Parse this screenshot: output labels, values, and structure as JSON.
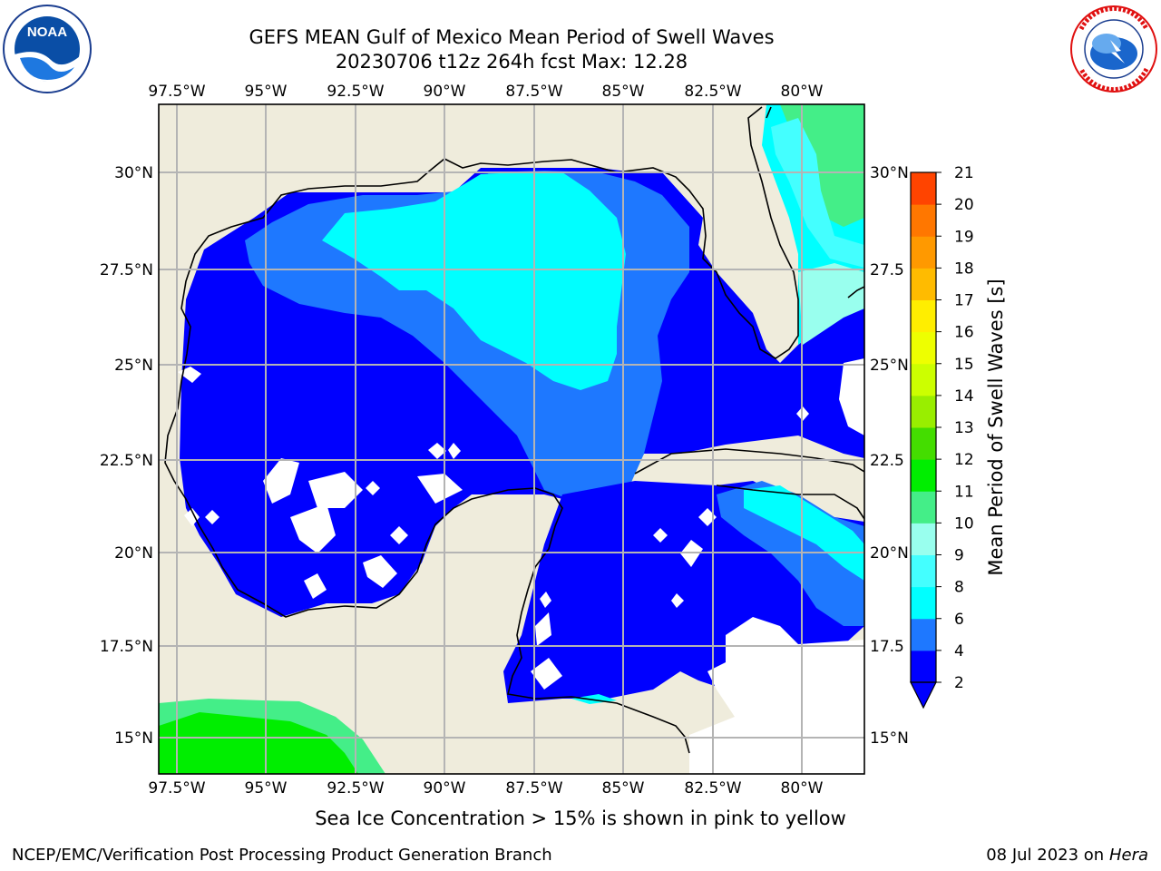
{
  "header": {
    "title_line1": "GEFS MEAN Gulf of Mexico Mean Period of Swell Waves",
    "title_line2": "20230706 t12z 264h fcst   Max: 12.28"
  },
  "logos": {
    "left": {
      "name": "noaa-logo",
      "text": "NOAA",
      "ring_text": "NATIONAL OCEANIC AND ATMOSPHERIC ADMINISTRATION · U.S. DEPARTMENT OF COMMERCE"
    },
    "right": {
      "name": "nws-logo",
      "ring_text": "NATIONAL WEATHER SERVICE"
    }
  },
  "map": {
    "lon_labels": [
      "97.5°W",
      "95°W",
      "92.5°W",
      "90°W",
      "87.5°W",
      "85°W",
      "82.5°W",
      "80°W"
    ],
    "lat_labels_left": [
      "30°N",
      "27.5°N",
      "25°N",
      "22.5°N",
      "20°N",
      "17.5°N",
      "15°N"
    ],
    "lat_labels_right": [
      "30°N",
      "27.5",
      "25°N",
      "22.5",
      "20°N",
      "17.5",
      "15°N"
    ],
    "land_color": "#efecdc",
    "coast_color": "#000000",
    "grid_color": "#b4b4b4"
  },
  "colorbar": {
    "label": "Mean Period of Swell Waves [s]",
    "levels": [
      "2",
      "4",
      "6",
      "8",
      "9",
      "10",
      "11",
      "12",
      "13",
      "14",
      "15",
      "16",
      "17",
      "18",
      "19",
      "20",
      "21"
    ],
    "colors": [
      "#0000ff",
      "#1e78ff",
      "#00ffff",
      "#44ffff",
      "#99ffee",
      "#44ee88",
      "#00ee00",
      "#44dd00",
      "#99ee00",
      "#ccff00",
      "#eeff00",
      "#ffee00",
      "#ffbb00",
      "#ff9900",
      "#ff7700",
      "#ff4400",
      "#ff0000"
    ],
    "extend": "min"
  },
  "note": "Sea Ice Concentration > 15% is shown in pink to yellow",
  "footer": {
    "left": "NCEP/EMC/Verification Post Processing Product Generation Branch",
    "right_date": "08 Jul 2023 on ",
    "right_machine": "Hera"
  }
}
